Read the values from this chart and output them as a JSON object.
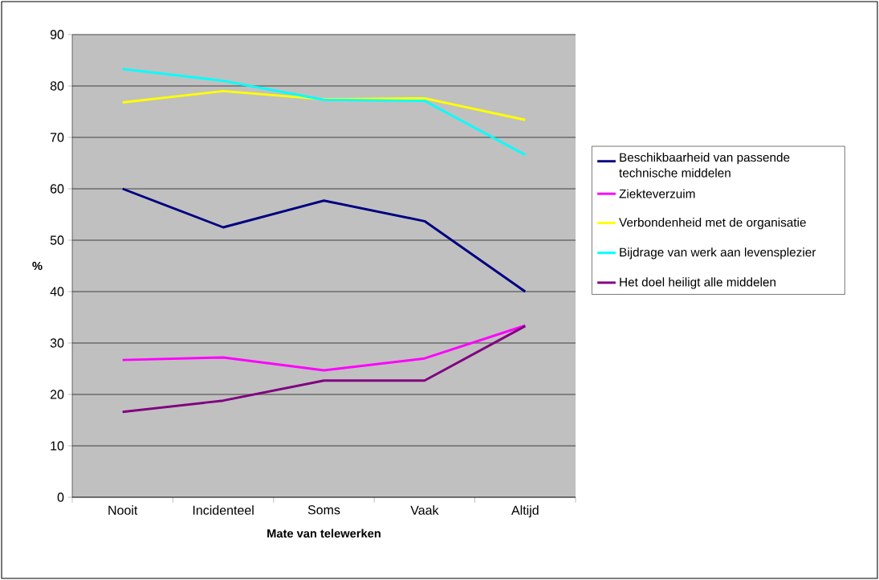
{
  "chart_data": {
    "type": "line",
    "xlabel": "Mate van telewerken",
    "ylabel": "%",
    "categories": [
      "Nooit",
      "Incidenteel",
      "Soms",
      "Vaak",
      "Altijd"
    ],
    "series": [
      {
        "name": "Beschikbaarheid van passende technische middelen",
        "color": "#000080",
        "values": [
          60,
          52.5,
          57.7,
          53.7,
          40
        ]
      },
      {
        "name": "Ziekteverzuim",
        "color": "#ff00ff",
        "values": [
          26.7,
          27.2,
          24.7,
          27,
          33.4
        ]
      },
      {
        "name": "Verbondenheid met de organisatie",
        "color": "#ffff00",
        "values": [
          76.8,
          79,
          77.4,
          77.6,
          73.4
        ]
      },
      {
        "name": "Bijdrage van werk aan levensplezier",
        "color": "#00ffff",
        "values": [
          83.3,
          81,
          77.3,
          77.1,
          66.6
        ]
      },
      {
        "name": "Het doel heiligt alle middelen",
        "color": "#800080",
        "values": [
          16.6,
          18.8,
          22.7,
          22.7,
          33.3
        ]
      }
    ],
    "ylim": [
      0,
      90
    ],
    "yticks": [
      0,
      10,
      20,
      30,
      40,
      50,
      60,
      70,
      80,
      90
    ],
    "grid": "y",
    "legend": "right"
  }
}
